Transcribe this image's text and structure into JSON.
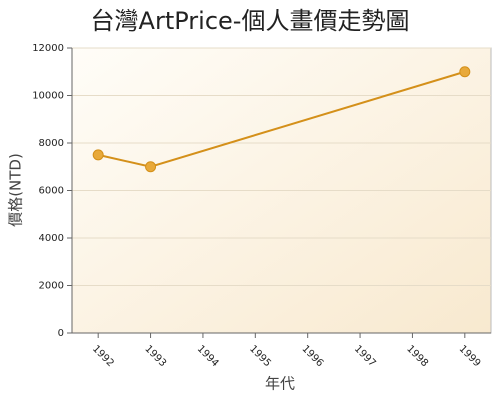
{
  "chart_data": {
    "type": "line",
    "title": "台灣ArtPrice-個人畫價走勢圖",
    "x_label": "年代",
    "y_label": "價格(NTD)",
    "x": [
      1992,
      1993,
      1999
    ],
    "series": [
      {
        "name": "價格",
        "color": "#d4901a",
        "values": [
          7500,
          7000,
          11000
        ]
      }
    ],
    "xlim": [
      1991.5,
      1999.5
    ],
    "xticks": [
      1992,
      1993,
      1994,
      1995,
      1996,
      1997,
      1998,
      1999
    ],
    "ylim": [
      0,
      12000
    ],
    "yticks": [
      0,
      2000,
      4000,
      6000,
      8000,
      10000,
      12000
    ],
    "grid": true
  }
}
